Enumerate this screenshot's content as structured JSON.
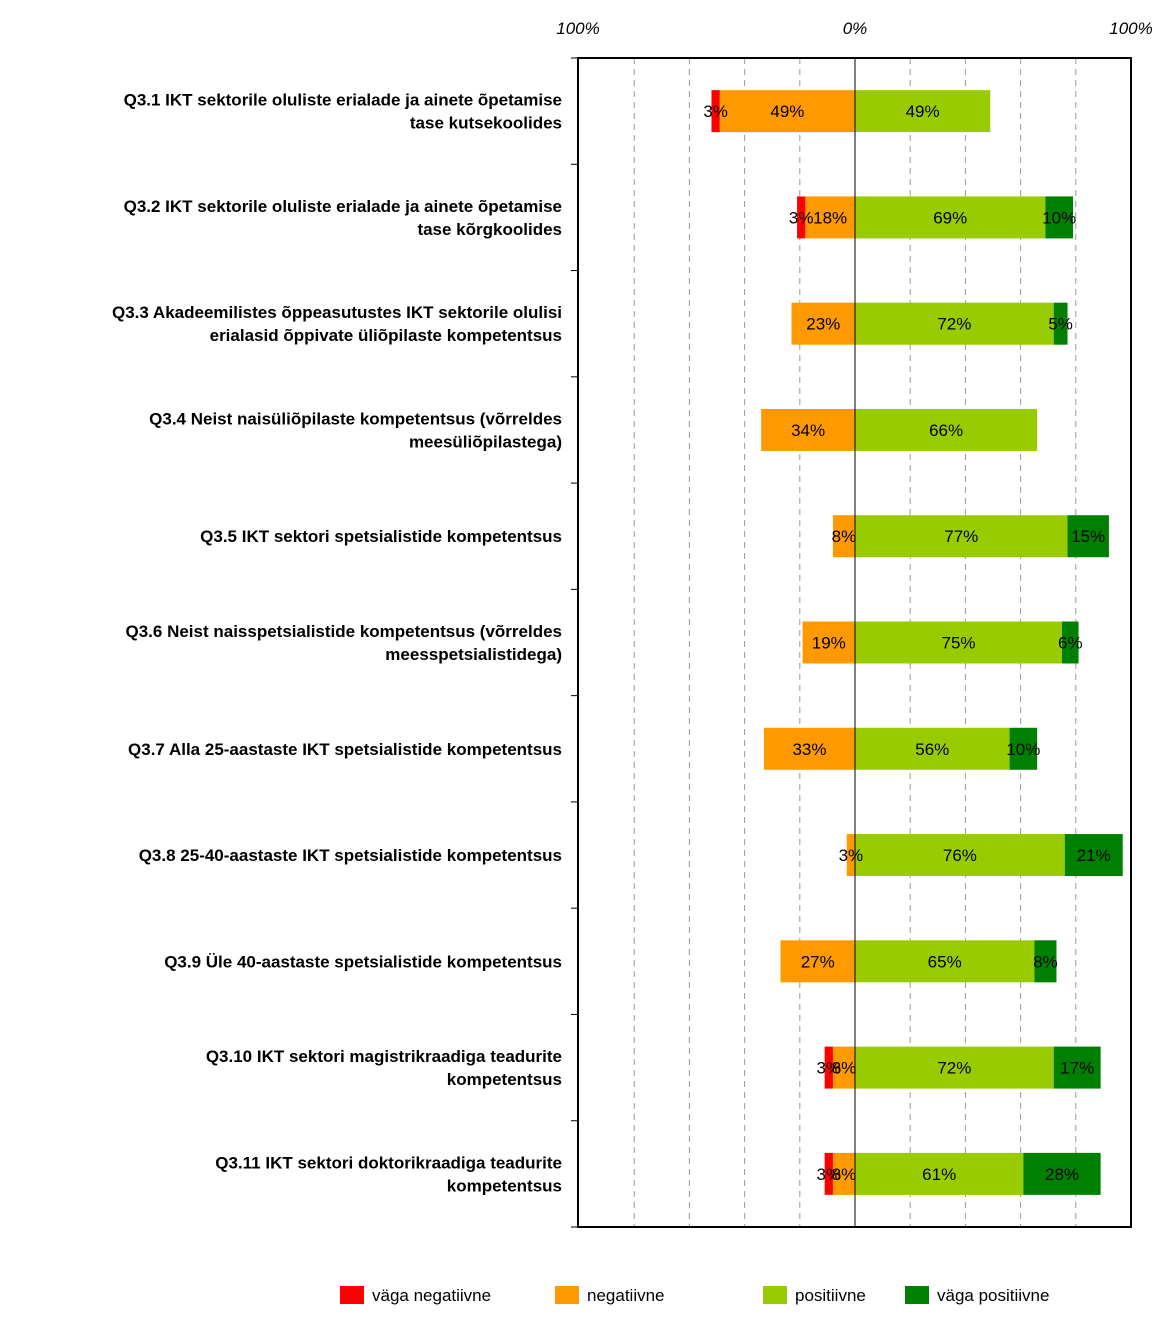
{
  "chart_data": {
    "type": "bar",
    "orientation": "horizontal",
    "stacked": "diverging",
    "axis_top_labels": [
      "100%",
      "0%",
      "100%"
    ],
    "xlim": [
      -100,
      100
    ],
    "grid": "vertical dashed",
    "legend_position": "bottom",
    "categories": [
      [
        "Q3.1 IKT sektorile oluliste erialade ja ainete õpetamise",
        "tase kutsekoolides"
      ],
      [
        "Q3.2 IKT sektorile oluliste erialade ja ainete õpetamise",
        "tase kõrgkoolides"
      ],
      [
        "Q3.3 Akadeemilistes õppeasutustes IKT sektorile olulisi",
        "erialasid õppivate üliõpilaste kompetentsus"
      ],
      [
        "Q3.4 Neist naisüliõpilaste kompetentsus (võrreldes",
        "meesüliõpilastega)"
      ],
      [
        "Q3.5 IKT sektori spetsialistide kompetentsus"
      ],
      [
        "Q3.6 Neist naisspetsialistide kompetentsus (võrreldes",
        "meesspetsialistidega)"
      ],
      [
        "Q3.7 Alla 25-aastaste IKT spetsialistide kompetentsus"
      ],
      [
        "Q3.8 25-40-aastaste IKT spetsialistide kompetentsus"
      ],
      [
        "Q3.9 Üle 40-aastaste spetsialistide kompetentsus"
      ],
      [
        "Q3.10 IKT sektori magistrikraadiga teadurite",
        "kompetentsus"
      ],
      [
        "Q3.11 IKT sektori doktorikraadiga teadurite",
        "kompetentsus"
      ]
    ],
    "series": [
      {
        "name": "väga negatiivne",
        "color": "#ff0000",
        "side": "negative",
        "values": [
          3,
          3,
          0,
          0,
          0,
          0,
          0,
          0,
          0,
          3,
          3
        ],
        "labels": [
          "3%",
          "3%",
          "",
          "",
          "",
          "",
          "",
          "",
          "",
          "3%",
          "3%"
        ]
      },
      {
        "name": "negatiivne",
        "color": "#ff9900",
        "side": "negative",
        "values": [
          49,
          18,
          23,
          34,
          8,
          19,
          33,
          3,
          27,
          8,
          8
        ],
        "labels": [
          "49%",
          "18%",
          "23%",
          "34%",
          "8%",
          "19%",
          "33%",
          "3%",
          "27%",
          "8%",
          "8%"
        ]
      },
      {
        "name": "positiivne",
        "color": "#99cc00",
        "side": "positive",
        "values": [
          49,
          69,
          72,
          66,
          77,
          75,
          56,
          76,
          65,
          72,
          61
        ],
        "labels": [
          "49%",
          "69%",
          "72%",
          "66%",
          "77%",
          "75%",
          "56%",
          "76%",
          "65%",
          "72%",
          "61%"
        ]
      },
      {
        "name": "väga positiivne",
        "color": "#008000",
        "side": "positive",
        "values": [
          0,
          10,
          5,
          0,
          15,
          6,
          10,
          21,
          8,
          17,
          28
        ],
        "labels": [
          "",
          "10%",
          "5%",
          "",
          "15%",
          "6%",
          "10%",
          "21%",
          "8%",
          "17%",
          "28%"
        ]
      }
    ]
  }
}
